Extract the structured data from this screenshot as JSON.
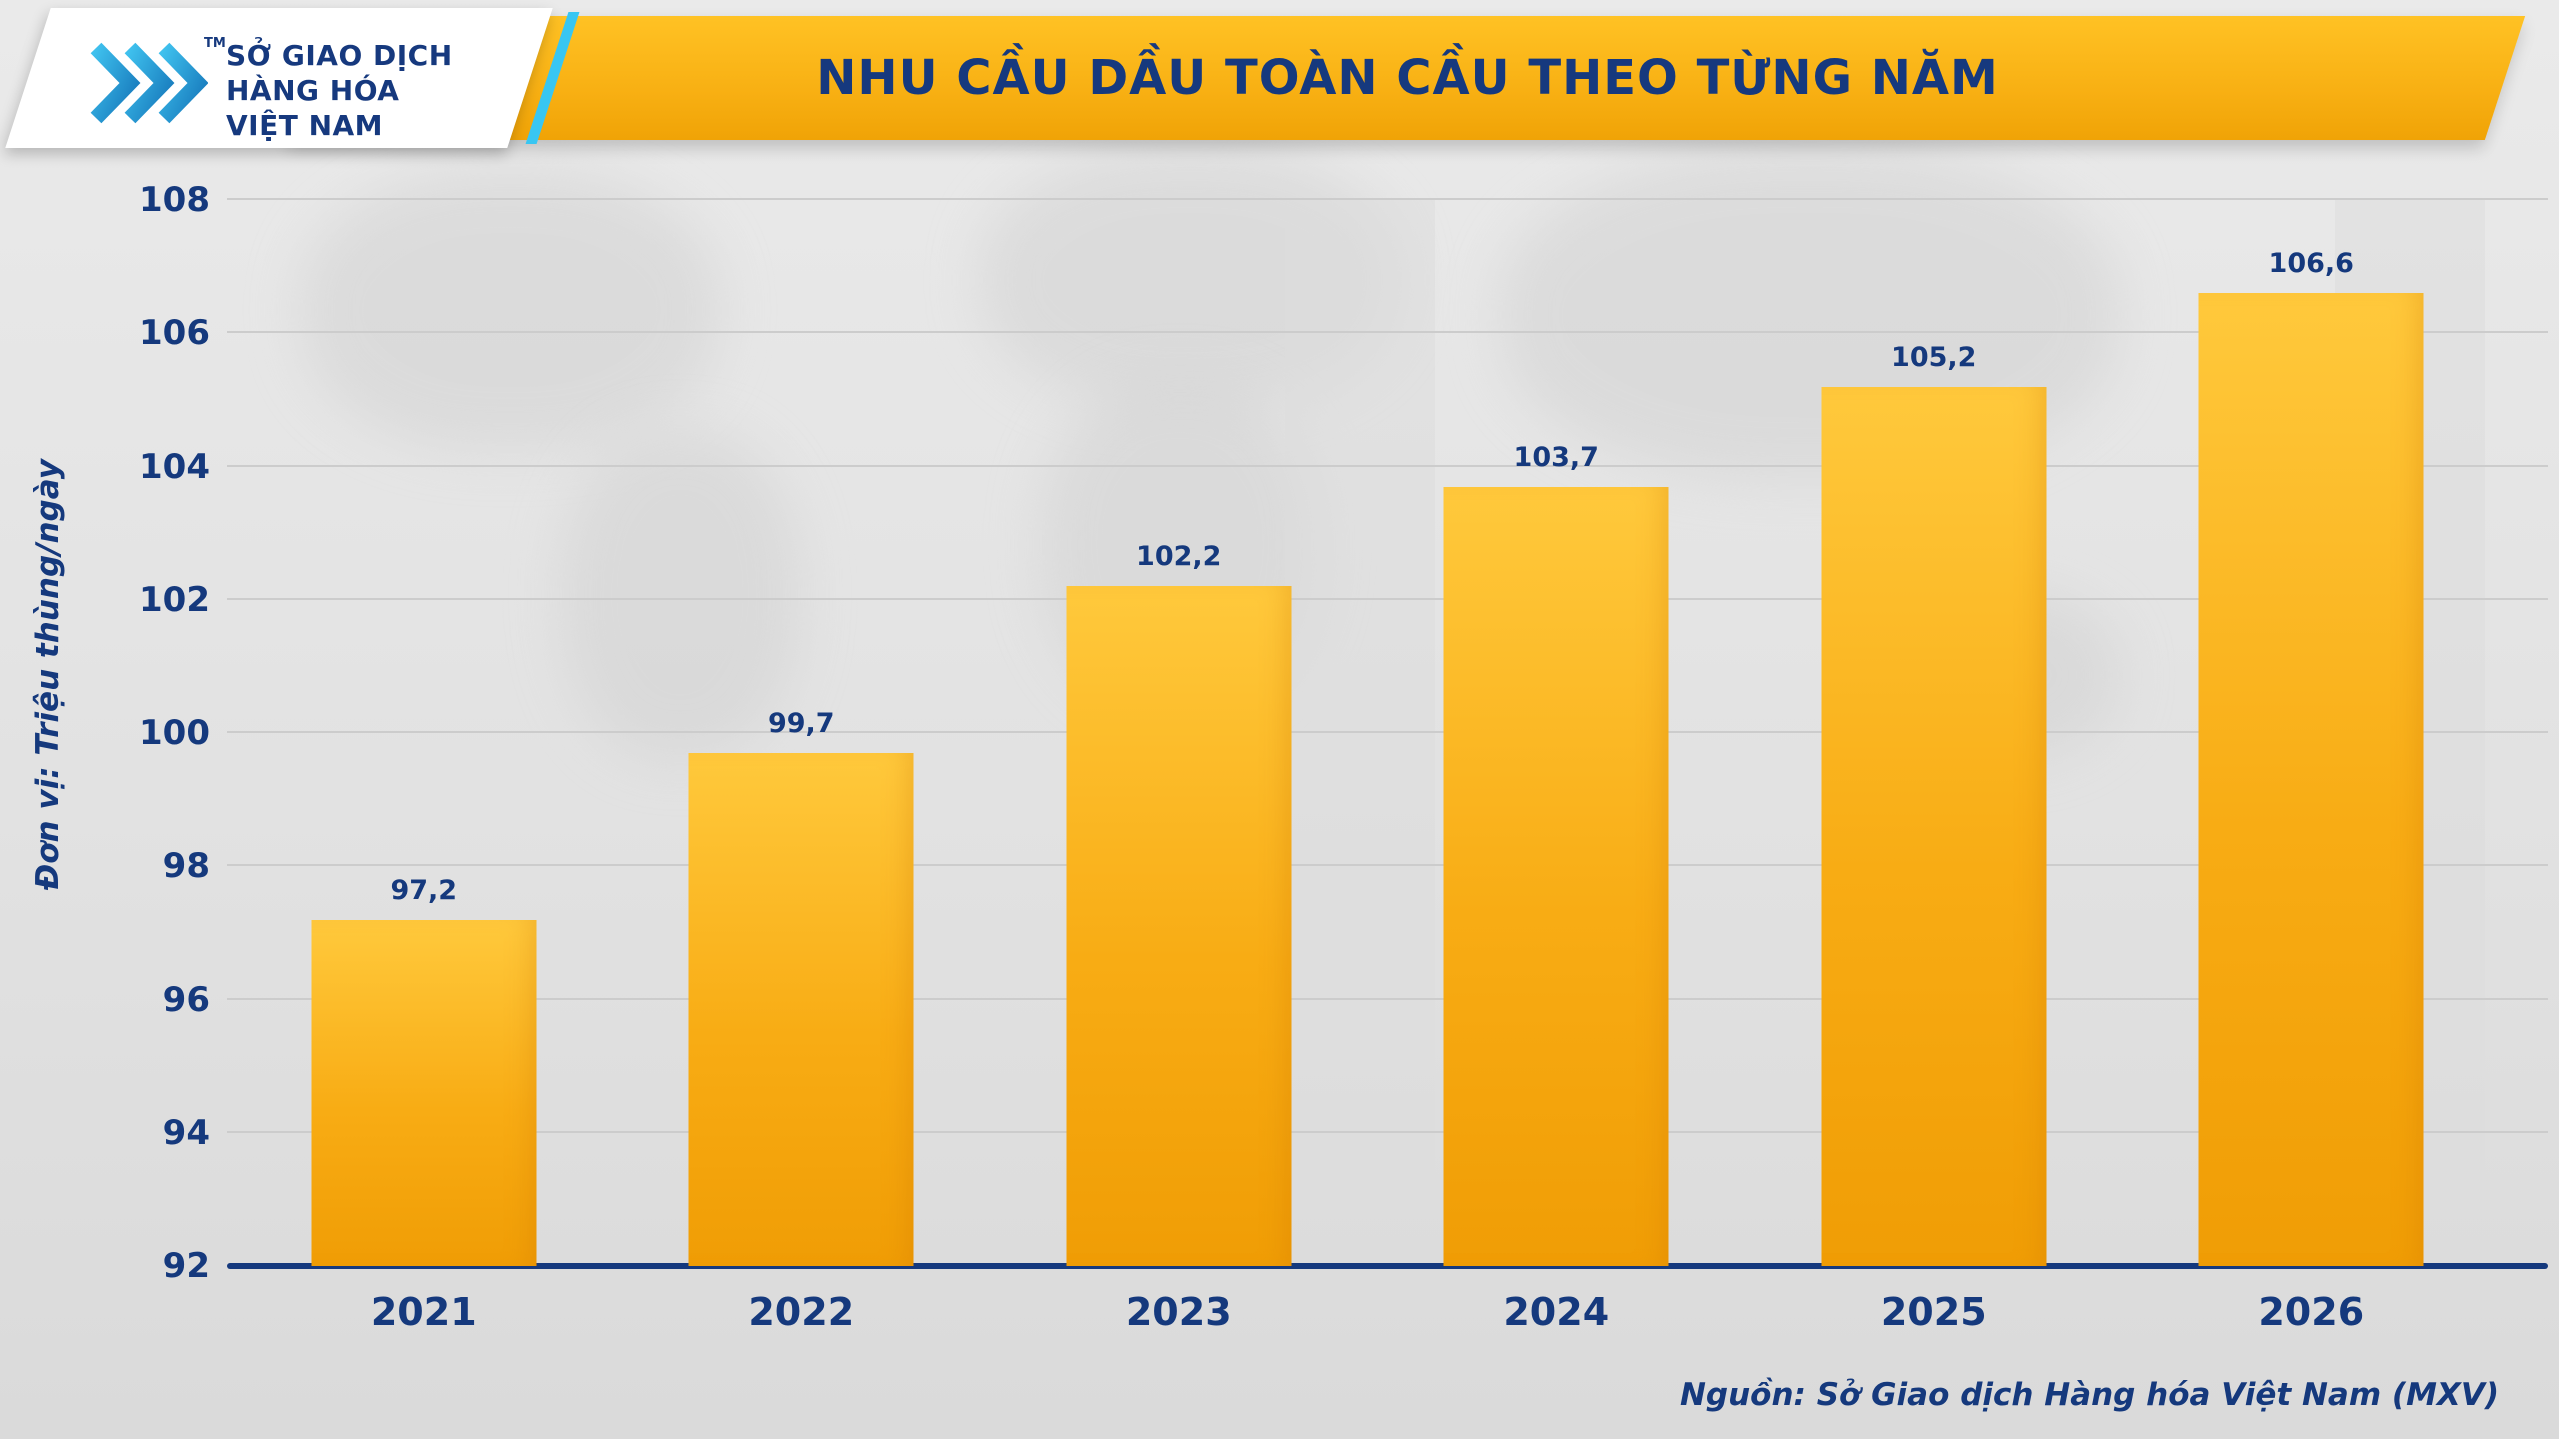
{
  "header": {
    "title": "NHU CẦU DẦU TOÀN CẦU THEO TỪNG NĂM",
    "logo": {
      "lines": [
        "SỞ GIAO DỊCH",
        "HÀNG HÓA",
        "VIỆT NAM"
      ],
      "tm": "TM"
    }
  },
  "chart_data": {
    "type": "bar",
    "categories": [
      "2021",
      "2022",
      "2023",
      "2024",
      "2025",
      "2026"
    ],
    "values": [
      97.2,
      99.7,
      102.2,
      103.7,
      105.2,
      106.6
    ],
    "value_labels": [
      "97,2",
      "99,7",
      "102,2",
      "103,7",
      "105,2",
      "106,6"
    ],
    "title": "NHU CẦU DẦU TOÀN CẦU THEO TỪNG NĂM",
    "xlabel": "",
    "ylabel": "Đơn vị: Triệu thùng/ngày",
    "ylim": [
      92,
      108
    ],
    "yticks": [
      92,
      94,
      96,
      98,
      100,
      102,
      104,
      106,
      108
    ],
    "grid": true,
    "legend": false
  },
  "footer": {
    "source": "Nguồn: Sở Giao dịch Hàng hóa Việt Nam (MXV)"
  },
  "colors": {
    "bar_top": "#FFC93C",
    "bar_bottom": "#F09D05",
    "banner_gold": "#F8B013",
    "navy": "#15397D",
    "accent_cyan": "#38C6F2",
    "background": "#E2E2E2"
  }
}
